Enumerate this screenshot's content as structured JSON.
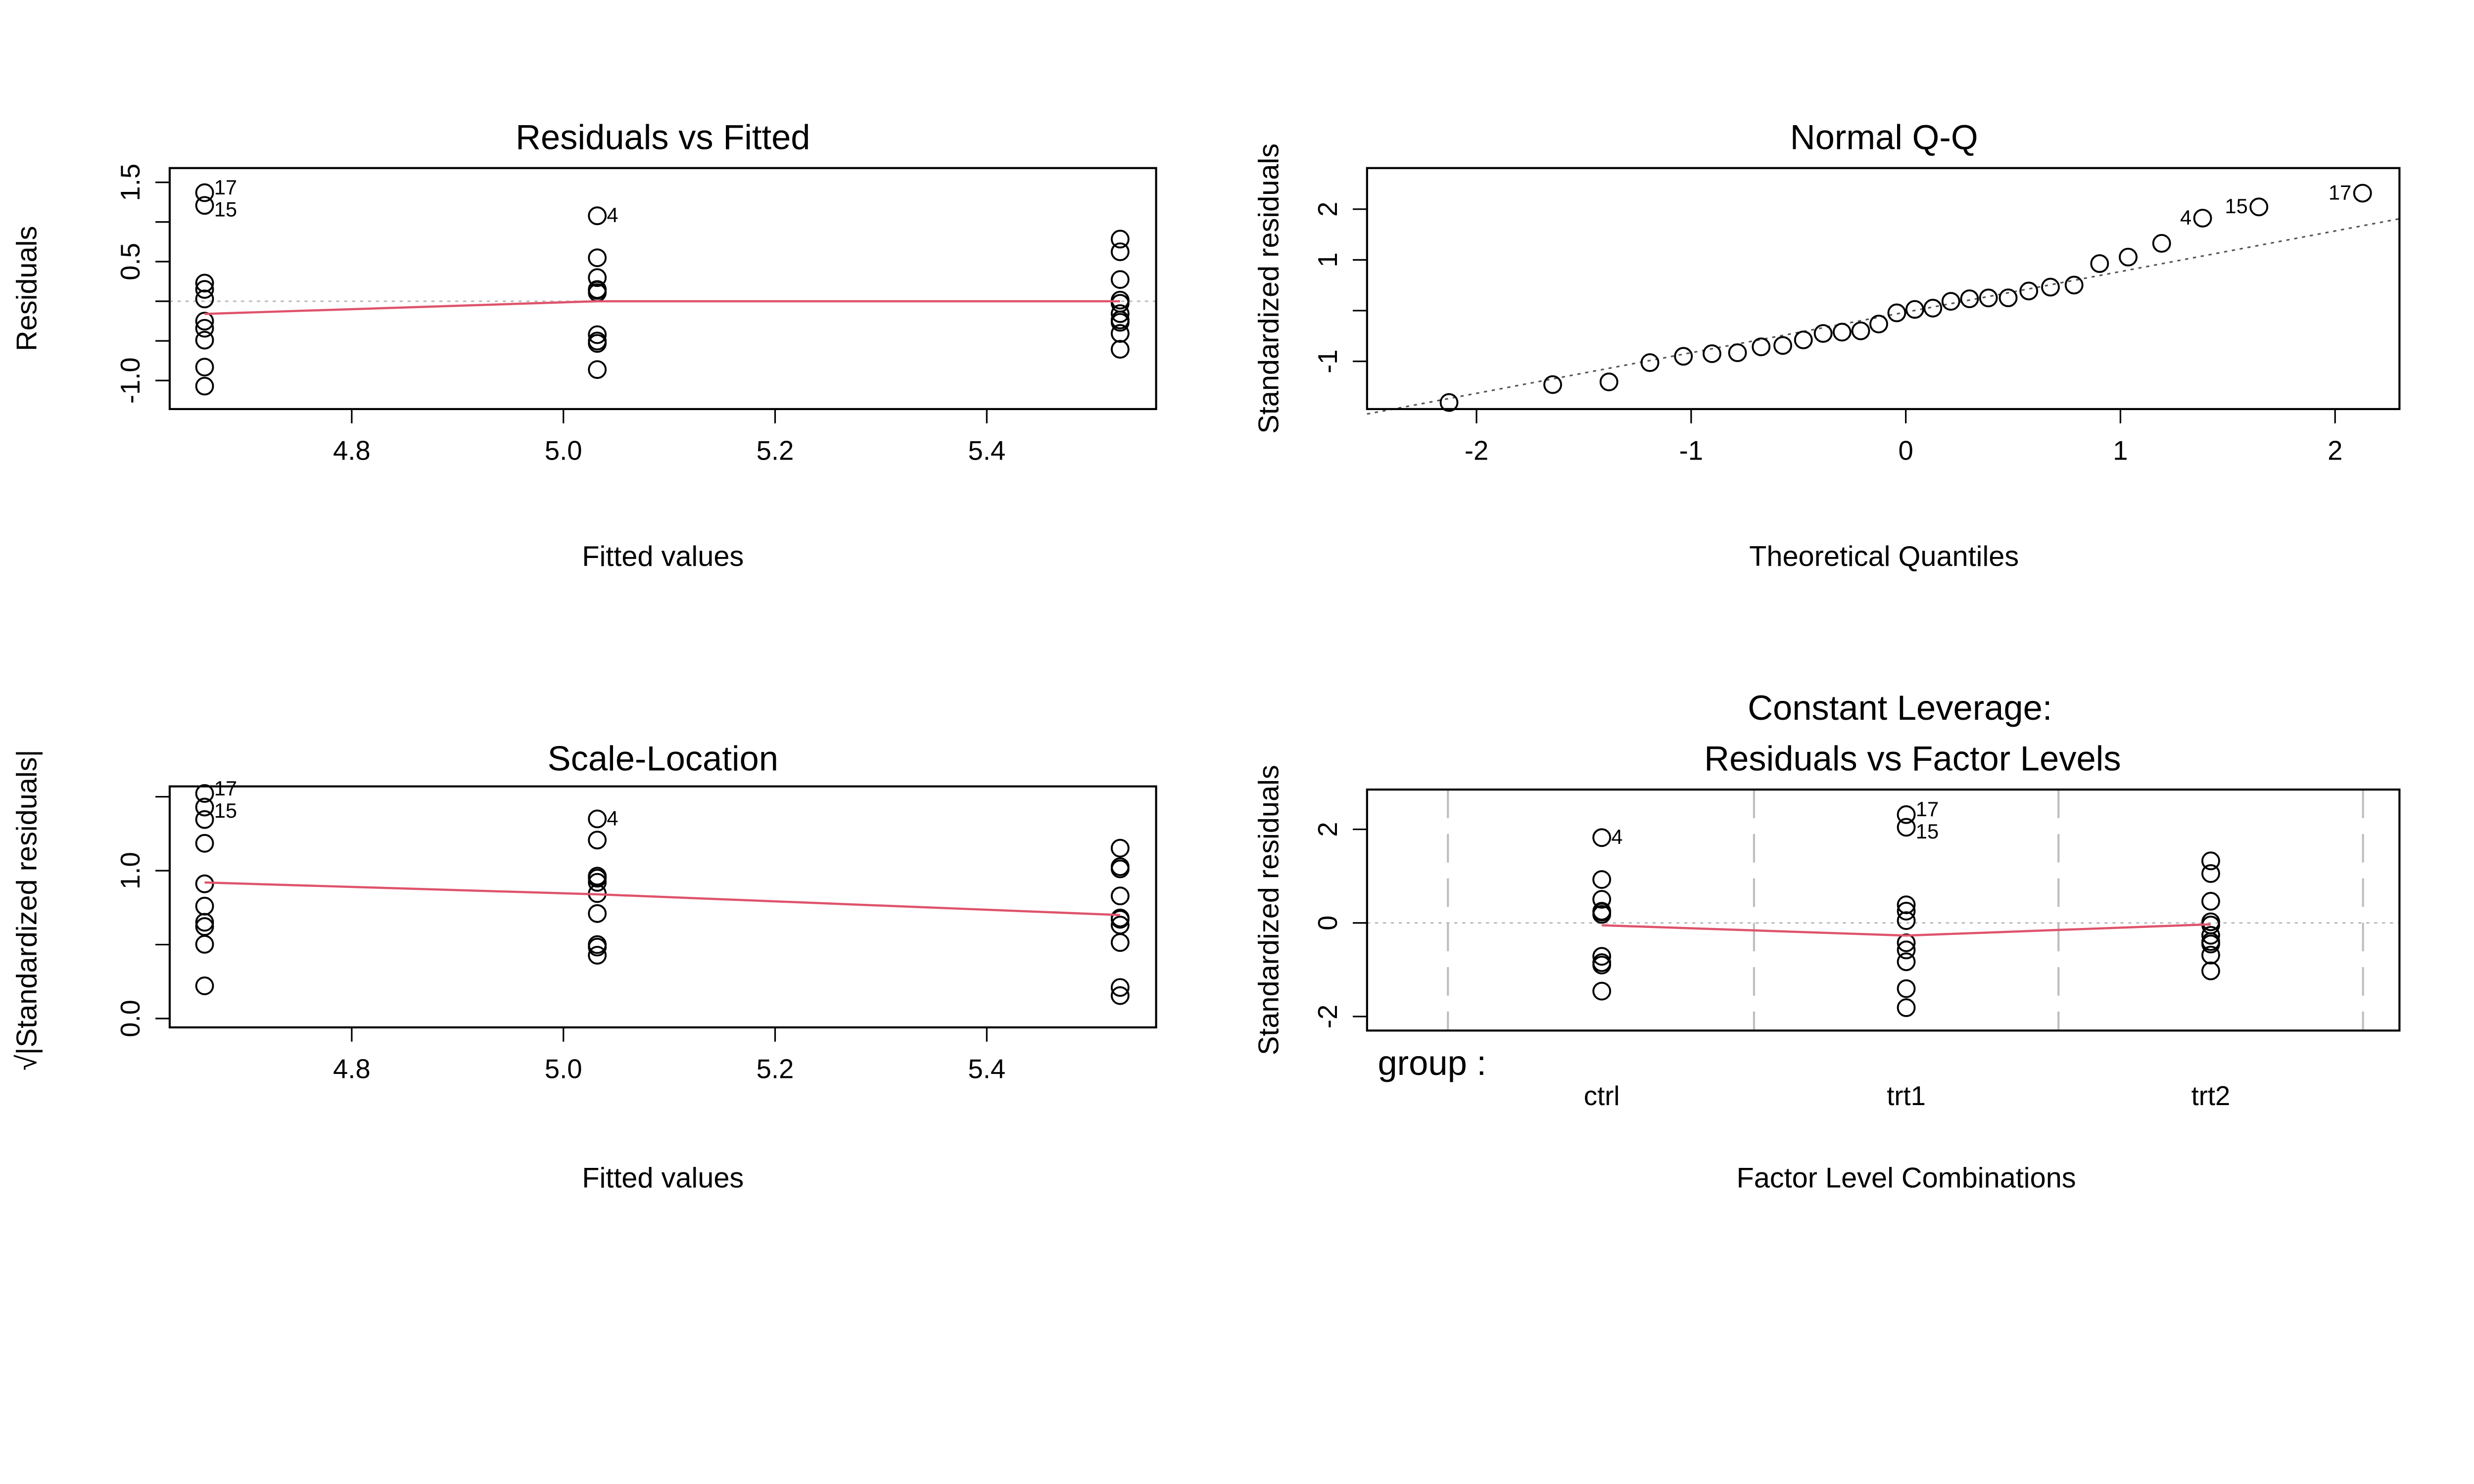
{
  "colors": {
    "points": "#000000",
    "smoother": "#DF536B",
    "reference": "#BEBEBE",
    "qqline": "#555555"
  },
  "chart_data": [
    {
      "type": "scatter",
      "title": "Residuals vs Fitted",
      "xlabel": "Fitted values",
      "ylabel": "Residuals",
      "xlim": [
        4.628,
        5.56
      ],
      "ylim": [
        -1.36,
        1.68
      ],
      "xticks": [
        4.8,
        5.0,
        5.2,
        5.4
      ],
      "xtick_labels": [
        "4.8",
        "5.0",
        "5.2",
        "5.4"
      ],
      "yticks": [
        -1.0,
        -0.5,
        0,
        0.5,
        1.0,
        1.5
      ],
      "ytick_labels": [
        "-1.0",
        "",
        "",
        "0.5",
        "",
        "1.5"
      ],
      "x": [
        5.032,
        5.032,
        5.032,
        5.032,
        5.032,
        5.032,
        5.032,
        5.032,
        5.032,
        5.032,
        4.661,
        4.661,
        4.661,
        4.661,
        4.661,
        4.661,
        4.661,
        4.661,
        4.661,
        4.661,
        5.526,
        5.526,
        5.526,
        5.526,
        5.526,
        5.526,
        5.526,
        5.526,
        5.526,
        5.526
      ],
      "y": [
        -0.862,
        0.548,
        0.148,
        1.078,
        -0.532,
        -0.422,
        0.138,
        -0.502,
        0.298,
        0.108,
        0.149,
        -0.491,
        -0.251,
        -1.071,
        1.209,
        -0.831,
        1.369,
        0.229,
        -0.341,
        0.029,
        0.784,
        -0.406,
        0.014,
        -0.026,
        -0.156,
        -0.236,
        -0.606,
        0.624,
        0.274,
        -0.266
      ],
      "point_labels": [
        {
          "index": 17,
          "text": "17"
        },
        {
          "index": 15,
          "text": "15"
        },
        {
          "index": 4,
          "text": "4"
        }
      ],
      "hline": 0,
      "smoother": {
        "x": [
          4.661,
          5.032,
          5.526
        ],
        "y": [
          -0.16,
          0.0,
          0.0
        ]
      }
    },
    {
      "type": "scatter",
      "title": "Normal Q-Q",
      "xlabel": "Theoretical Quantiles",
      "ylabel": "Standardized residuals",
      "xlim": [
        -2.51,
        2.3
      ],
      "ylim": [
        -1.94,
        2.81
      ],
      "xticks": [
        -2,
        -1,
        0,
        1,
        2
      ],
      "xtick_labels": [
        "-2",
        "-1",
        "0",
        "1",
        "2"
      ],
      "yticks": [
        -1,
        0,
        1,
        2
      ],
      "ytick_labels": [
        "-1",
        "",
        "1",
        "2"
      ],
      "x": [
        -2.128,
        -1.645,
        -1.383,
        -1.192,
        -1.036,
        -0.903,
        -0.784,
        -0.674,
        -0.573,
        -0.477,
        -0.385,
        -0.297,
        -0.21,
        -0.126,
        -0.042,
        0.042,
        0.126,
        0.21,
        0.297,
        0.385,
        0.477,
        0.573,
        0.674,
        0.784,
        0.903,
        1.036,
        1.192,
        1.383,
        1.645,
        2.128
      ],
      "y": [
        -1.811,
        -1.458,
        -1.405,
        -1.025,
        -0.9,
        -0.849,
        -0.83,
        -0.714,
        -0.687,
        -0.577,
        -0.45,
        -0.424,
        -0.399,
        -0.264,
        -0.044,
        0.024,
        0.049,
        0.183,
        0.233,
        0.25,
        0.252,
        0.387,
        0.463,
        0.504,
        0.927,
        1.055,
        1.326,
        1.823,
        2.044,
        2.315
      ],
      "point_labels": [
        {
          "index": 4,
          "text": "4"
        },
        {
          "index": 15,
          "text": "15"
        },
        {
          "index": 17,
          "text": "17"
        }
      ],
      "qqline": {
        "slope": 0.8,
        "intercept": -0.03
      }
    },
    {
      "type": "scatter",
      "title": "Scale-Location",
      "xlabel": "Fitted values",
      "ylabel": "√|Standardized residuals|",
      "xlim": [
        4.628,
        5.56
      ],
      "ylim": [
        -0.06,
        1.57
      ],
      "xticks": [
        4.8,
        5.0,
        5.2,
        5.4
      ],
      "xtick_labels": [
        "4.8",
        "5.0",
        "5.2",
        "5.4"
      ],
      "yticks": [
        0,
        0.5,
        1.0,
        1.5
      ],
      "ytick_labels": [
        "0.0",
        "",
        "1.0",
        ""
      ],
      "x": [
        5.032,
        5.032,
        5.032,
        5.032,
        5.032,
        5.032,
        5.032,
        5.032,
        5.032,
        5.032,
        4.661,
        4.661,
        4.661,
        4.661,
        4.661,
        4.661,
        4.661,
        4.661,
        4.661,
        4.661,
        5.526,
        5.526,
        5.526,
        5.526,
        5.526,
        5.526,
        5.526,
        5.526,
        5.526,
        5.526
      ],
      "y": [
        1.207,
        0.963,
        0.5,
        1.35,
        0.949,
        0.845,
        0.483,
        0.921,
        0.71,
        0.428,
        0.502,
        0.911,
        0.651,
        1.346,
        1.43,
        1.185,
        1.522,
        0.622,
        0.76,
        0.221,
        1.152,
        0.829,
        0.155,
        0.21,
        0.514,
        0.632,
        1.012,
        1.027,
        0.68,
        0.671
      ],
      "point_labels": [
        {
          "index": 17,
          "text": "17"
        },
        {
          "index": 15,
          "text": "15"
        },
        {
          "index": 4,
          "text": "4"
        }
      ],
      "smoother": {
        "x": [
          4.661,
          5.032,
          5.526
        ],
        "y": [
          0.92,
          0.84,
          0.7
        ]
      }
    },
    {
      "type": "scatter",
      "title": "Constant Leverage:\nResiduals vs Factor Levels",
      "title_lines": [
        "Constant Leverage:",
        "Residuals vs Factor Levels"
      ],
      "xlabel": "Factor Level Combinations",
      "ylabel": "Standardized residuals",
      "factor_label": "group :",
      "categories": [
        "ctrl",
        "trt1",
        "trt2"
      ],
      "ylim": [
        -2.3,
        2.85
      ],
      "yticks": [
        -2,
        0,
        2
      ],
      "ytick_labels": [
        "-2",
        "0",
        "2"
      ],
      "x": [
        "ctrl",
        "ctrl",
        "ctrl",
        "ctrl",
        "ctrl",
        "ctrl",
        "ctrl",
        "ctrl",
        "ctrl",
        "ctrl",
        "trt1",
        "trt1",
        "trt1",
        "trt1",
        "trt1",
        "trt1",
        "trt1",
        "trt1",
        "trt1",
        "trt1",
        "trt2",
        "trt2",
        "trt2",
        "trt2",
        "trt2",
        "trt2",
        "trt2",
        "trt2",
        "trt2",
        "trt2"
      ],
      "y": [
        -1.458,
        0.927,
        0.25,
        1.823,
        -0.9,
        -0.714,
        0.233,
        -0.849,
        0.504,
        0.183,
        0.252,
        -0.83,
        -0.424,
        -1.811,
        2.044,
        -1.405,
        2.315,
        0.387,
        -0.577,
        0.049,
        1.326,
        -0.687,
        0.024,
        -0.044,
        -0.264,
        -0.399,
        -1.025,
        1.055,
        0.463,
        -0.45
      ],
      "point_labels": [
        {
          "index": 4,
          "text": "4"
        },
        {
          "index": 17,
          "text": "17"
        },
        {
          "index": 15,
          "text": "15"
        }
      ],
      "hline": 0,
      "smoother": {
        "x": [
          "ctrl",
          "trt1",
          "trt2"
        ],
        "y": [
          -0.05,
          -0.27,
          -0.03
        ]
      }
    }
  ]
}
